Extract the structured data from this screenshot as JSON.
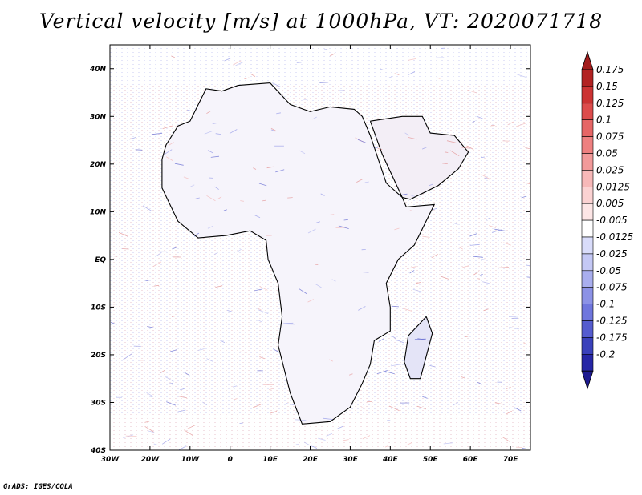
{
  "title": "Vertical velocity [m/s] at 1000hPa, VT: 2020071718",
  "credit": "GrADS: IGES/COLA",
  "map": {
    "lon_range": [
      -30,
      75
    ],
    "lat_range": [
      -40,
      45
    ],
    "lon_ticks": [
      {
        "value": -30,
        "label": "30W"
      },
      {
        "value": -20,
        "label": "20W"
      },
      {
        "value": -10,
        "label": "10W"
      },
      {
        "value": 0,
        "label": "0"
      },
      {
        "value": 10,
        "label": "10E"
      },
      {
        "value": 20,
        "label": "20E"
      },
      {
        "value": 30,
        "label": "30E"
      },
      {
        "value": 40,
        "label": "40E"
      },
      {
        "value": 50,
        "label": "50E"
      },
      {
        "value": 60,
        "label": "60E"
      },
      {
        "value": 70,
        "label": "70E"
      }
    ],
    "lat_ticks": [
      {
        "value": 40,
        "label": "40N"
      },
      {
        "value": 30,
        "label": "30N"
      },
      {
        "value": 20,
        "label": "20N"
      },
      {
        "value": 10,
        "label": "10N"
      },
      {
        "value": 0,
        "label": "EQ"
      },
      {
        "value": -10,
        "label": "10S"
      },
      {
        "value": -20,
        "label": "20S"
      },
      {
        "value": -30,
        "label": "30S"
      },
      {
        "value": -40,
        "label": "40S"
      }
    ],
    "africa_outline": [
      [
        -17,
        21
      ],
      [
        -17,
        15
      ],
      [
        -13,
        8
      ],
      [
        -8,
        4.5
      ],
      [
        -1,
        5
      ],
      [
        5,
        6
      ],
      [
        9,
        4
      ],
      [
        9.5,
        0
      ],
      [
        12,
        -5
      ],
      [
        13,
        -12
      ],
      [
        12,
        -18
      ],
      [
        15,
        -28
      ],
      [
        18,
        -34.5
      ],
      [
        25,
        -34
      ],
      [
        30,
        -31
      ],
      [
        33,
        -26
      ],
      [
        35,
        -22
      ],
      [
        36,
        -17
      ],
      [
        40,
        -15
      ],
      [
        40,
        -10
      ],
      [
        39,
        -5
      ],
      [
        42,
        0
      ],
      [
        46,
        3
      ],
      [
        51,
        11.5
      ],
      [
        44,
        11
      ],
      [
        43,
        13
      ],
      [
        39,
        16
      ],
      [
        37,
        21
      ],
      [
        35,
        26
      ],
      [
        33,
        30
      ],
      [
        31,
        31.5
      ],
      [
        25,
        32
      ],
      [
        20,
        31
      ],
      [
        15,
        32.5
      ],
      [
        10,
        37
      ],
      [
        2,
        36.5
      ],
      [
        -2,
        35.3
      ],
      [
        -6,
        35.8
      ],
      [
        -10,
        29
      ],
      [
        -13,
        28
      ],
      [
        -16,
        24
      ],
      [
        -17,
        21
      ]
    ],
    "madagascar_outline": [
      [
        49,
        -12
      ],
      [
        50.5,
        -15.5
      ],
      [
        47.5,
        -25
      ],
      [
        45,
        -25
      ],
      [
        43.5,
        -21.5
      ],
      [
        44.5,
        -16
      ],
      [
        49,
        -12
      ]
    ],
    "arabia_outline": [
      [
        35,
        29
      ],
      [
        38,
        22
      ],
      [
        43,
        13
      ],
      [
        45,
        12.6
      ],
      [
        52,
        15.5
      ],
      [
        57,
        19
      ],
      [
        59.5,
        22.5
      ],
      [
        56,
        26
      ],
      [
        50,
        26.5
      ],
      [
        48,
        30
      ],
      [
        43,
        30
      ],
      [
        35,
        29
      ]
    ]
  },
  "colorbar": {
    "levels": [
      {
        "label": "0.175",
        "color": "#b22222"
      },
      {
        "label": "0.15",
        "color": "#cc3333"
      },
      {
        "label": "0.125",
        "color": "#dd4c4c"
      },
      {
        "label": "0.1",
        "color": "#e66666"
      },
      {
        "label": "0.075",
        "color": "#ee8080"
      },
      {
        "label": "0.05",
        "color": "#f29a9a"
      },
      {
        "label": "0.025",
        "color": "#f7b8b8"
      },
      {
        "label": "0.0125",
        "color": "#fbd2d2"
      },
      {
        "label": "0.005",
        "color": "#fde6e6"
      },
      {
        "label": "-0.005",
        "color": "#ffffff"
      },
      {
        "label": "-0.0125",
        "color": "#d9dcfa"
      },
      {
        "label": "-0.025",
        "color": "#c4c8f5"
      },
      {
        "label": "-0.05",
        "color": "#a9aeee"
      },
      {
        "label": "-0.075",
        "color": "#8c92e6"
      },
      {
        "label": "-0.1",
        "color": "#6f76dd"
      },
      {
        "label": "-0.125",
        "color": "#555ccf"
      },
      {
        "label": "-0.175",
        "color": "#3a41bb"
      },
      {
        "label": "-0.2",
        "color": "#2626a6"
      }
    ],
    "top_color": "#a21c1c",
    "bottom_color": "#1d1a90"
  }
}
